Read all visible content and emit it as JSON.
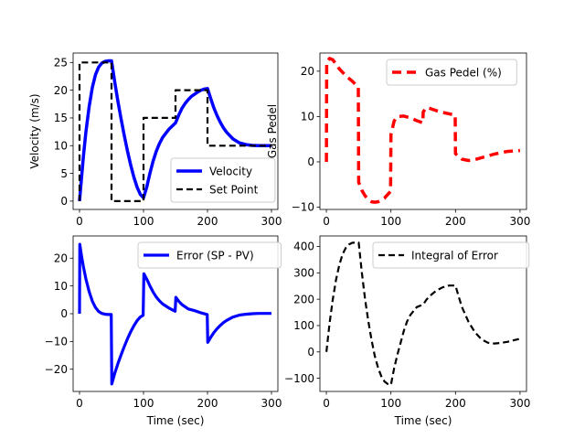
{
  "chart_data": [
    {
      "type": "line",
      "xlim": [
        -10,
        310
      ],
      "ylim": [
        -1.5,
        26.7
      ],
      "xticks": [
        0,
        100,
        200,
        300
      ],
      "yticks": [
        0,
        5,
        10,
        15,
        20,
        25
      ],
      "xlabel": "",
      "ylabel": "Velocity (m/s)",
      "legend": "lower-right",
      "grid": false,
      "series": [
        {
          "name": "Velocity",
          "color": "#0000ff",
          "style": "solid",
          "x": [
            0,
            3,
            6,
            10,
            15,
            20,
            25,
            30,
            35,
            40,
            45,
            50,
            55,
            60,
            65,
            70,
            75,
            80,
            85,
            90,
            95,
            100,
            105,
            110,
            115,
            120,
            125,
            130,
            140,
            150,
            155,
            160,
            165,
            170,
            175,
            180,
            185,
            190,
            195,
            200,
            205,
            210,
            215,
            220,
            225,
            230,
            240,
            250,
            260,
            270,
            280,
            290,
            300
          ],
          "y": [
            0,
            4,
            8,
            12.5,
            17,
            20.5,
            22.8,
            24.2,
            24.9,
            25.2,
            25.3,
            25.3,
            21.5,
            18,
            14.8,
            11.8,
            9,
            6.5,
            4.3,
            2.5,
            1.2,
            0.6,
            2.5,
            5,
            7.2,
            9,
            10.4,
            11.5,
            13,
            14.1,
            15.5,
            16.7,
            17.6,
            18.3,
            18.9,
            19.3,
            19.7,
            20,
            20.2,
            20.3,
            18.5,
            16.8,
            15.4,
            14.2,
            13.2,
            12.4,
            11.2,
            10.5,
            10.2,
            10.05,
            10,
            10,
            10
          ]
        },
        {
          "name": "Set Point",
          "color": "#000000",
          "style": "dashed",
          "x": [
            0,
            0,
            50,
            50,
            100,
            100,
            150,
            150,
            200,
            200,
            300
          ],
          "y": [
            0,
            25,
            25,
            0,
            0,
            15,
            15,
            20,
            20,
            10,
            10
          ]
        }
      ]
    },
    {
      "type": "line",
      "xlim": [
        -10,
        310
      ],
      "ylim": [
        -10.5,
        24
      ],
      "xticks": [
        0,
        100,
        200,
        300
      ],
      "yticks": [
        -10,
        0,
        10,
        20
      ],
      "xlabel": "",
      "ylabel": "Gas Pedel",
      "legend": "top-right",
      "grid": false,
      "series": [
        {
          "name": "Gas Pedel (%)",
          "color": "#ff0000",
          "style": "dashed",
          "x": [
            0,
            0.5,
            5,
            10,
            15,
            20,
            30,
            40,
            49.5,
            50,
            55,
            60,
            65,
            70,
            75,
            80,
            90,
            99.5,
            100,
            105,
            110,
            120,
            130,
            140,
            149.5,
            150,
            155,
            160,
            170,
            180,
            190,
            199.5,
            200,
            210,
            220,
            230,
            240,
            250,
            260,
            270,
            280,
            290,
            300
          ],
          "y": [
            0,
            22,
            22.8,
            22.5,
            21.5,
            20.5,
            19,
            17.8,
            16.5,
            -4.5,
            -6.3,
            -7.5,
            -8.3,
            -8.8,
            -8.9,
            -8.8,
            -8,
            -6.5,
            6,
            9,
            10,
            10.1,
            9.7,
            9.1,
            8.6,
            11,
            12,
            11.8,
            11.3,
            10.9,
            10.6,
            10.3,
            1.8,
            0.6,
            0.3,
            0.5,
            0.9,
            1.3,
            1.7,
            2,
            2.3,
            2.4,
            2.5
          ]
        }
      ]
    },
    {
      "type": "line",
      "xlim": [
        -10,
        310
      ],
      "ylim": [
        -28,
        28
      ],
      "xticks": [
        0,
        100,
        200,
        300
      ],
      "yticks": [
        -20,
        -10,
        0,
        10,
        20
      ],
      "xlabel": "Time (sec)",
      "ylabel": "",
      "legend": "top-right",
      "grid": false,
      "series": [
        {
          "name": "Error (SP - PV)",
          "color": "#0000ff",
          "style": "solid",
          "x": [
            0,
            0.5,
            3,
            6,
            10,
            15,
            20,
            25,
            30,
            35,
            40,
            45,
            49.5,
            50.5,
            55,
            60,
            65,
            70,
            75,
            80,
            85,
            90,
            95,
            99.5,
            100.5,
            105,
            110,
            115,
            120,
            125,
            130,
            140,
            149.5,
            150.5,
            155,
            160,
            170,
            180,
            190,
            199.5,
            200.5,
            205,
            210,
            215,
            220,
            225,
            230,
            240,
            250,
            260,
            270,
            280,
            290,
            300
          ],
          "y": [
            0,
            25,
            21,
            17,
            12.5,
            8,
            4.5,
            2.2,
            0.8,
            0.1,
            -0.2,
            -0.3,
            -0.3,
            -25.3,
            -21.5,
            -18,
            -14.8,
            -11.8,
            -9,
            -6.5,
            -4.3,
            -2.5,
            -1.2,
            -0.6,
            14.4,
            12.5,
            10,
            7.8,
            6,
            4.6,
            3.5,
            2,
            0.9,
            5.9,
            4.5,
            3.3,
            1.7,
            1.1,
            0.3,
            -0.3,
            -10.3,
            -8.5,
            -6.8,
            -5.4,
            -4.2,
            -3.2,
            -2.4,
            -1.2,
            -0.5,
            -0.2,
            0,
            0.1,
            0.1,
            0.1
          ]
        }
      ]
    },
    {
      "type": "line",
      "xlim": [
        -10,
        310
      ],
      "ylim": [
        -150,
        440
      ],
      "xticks": [
        0,
        100,
        200,
        300
      ],
      "yticks": [
        -100,
        0,
        100,
        200,
        300,
        400
      ],
      "xlabel": "Time (sec)",
      "ylabel": "",
      "legend": "top-right",
      "grid": false,
      "series": [
        {
          "name": "Integral of Error",
          "color": "#000000",
          "style": "dashed",
          "x": [
            0,
            5,
            10,
            15,
            20,
            25,
            30,
            35,
            40,
            45,
            50,
            55,
            60,
            65,
            70,
            75,
            80,
            85,
            90,
            95,
            100,
            105,
            110,
            115,
            120,
            125,
            130,
            140,
            150,
            155,
            160,
            170,
            180,
            190,
            200,
            205,
            210,
            220,
            230,
            240,
            250,
            260,
            270,
            280,
            290,
            300
          ],
          "y": [
            0,
            110,
            200,
            275,
            330,
            370,
            395,
            408,
            414,
            415,
            415,
            300,
            200,
            115,
            45,
            -15,
            -60,
            -92,
            -112,
            -122,
            -125,
            -62,
            -10,
            35,
            80,
            115,
            140,
            170,
            180,
            198,
            212,
            232,
            245,
            252,
            252,
            210,
            170,
            115,
            75,
            48,
            35,
            32,
            34,
            38,
            44,
            50
          ]
        }
      ]
    }
  ]
}
